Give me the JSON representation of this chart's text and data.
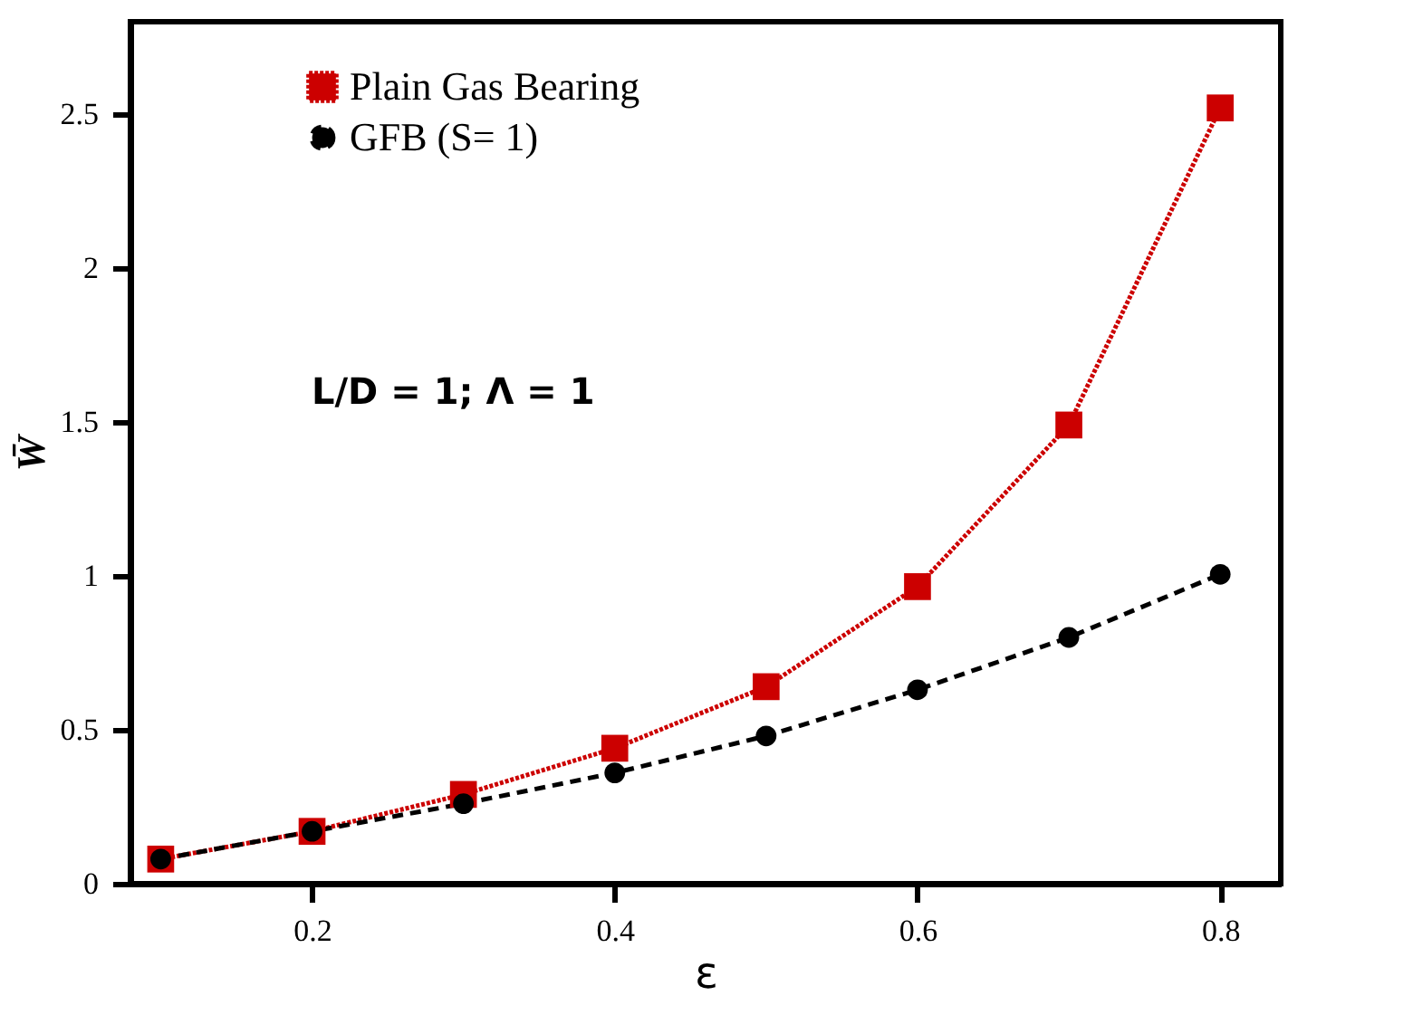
{
  "chart_data": {
    "type": "line",
    "xlabel": "ε",
    "ylabel": "W̄",
    "x": [
      0.1,
      0.2,
      0.3,
      0.4,
      0.5,
      0.6,
      0.7,
      0.8
    ],
    "series": [
      {
        "name": "Plain Gas Bearing",
        "color": "#cc0000",
        "marker": "square",
        "line_style": "dotted",
        "values": [
          0.08,
          0.17,
          0.29,
          0.44,
          0.64,
          0.965,
          1.49,
          2.52
        ]
      },
      {
        "name": "GFB (S= 1)",
        "color": "#000000",
        "marker": "circle",
        "line_style": "dashed",
        "values": [
          0.08,
          0.17,
          0.26,
          0.36,
          0.48,
          0.63,
          0.8,
          1.005
        ]
      }
    ],
    "xlim": [
      0.08,
      0.84
    ],
    "xticks": [
      0.2,
      0.4,
      0.6,
      0.8
    ],
    "ylim": [
      0,
      2.8
    ],
    "yticks": [
      0,
      0.5,
      1,
      1.5,
      2,
      2.5
    ],
    "annotations": [
      "L/D  = 1;  Λ = 1"
    ],
    "legend": "top left",
    "grid": false
  }
}
